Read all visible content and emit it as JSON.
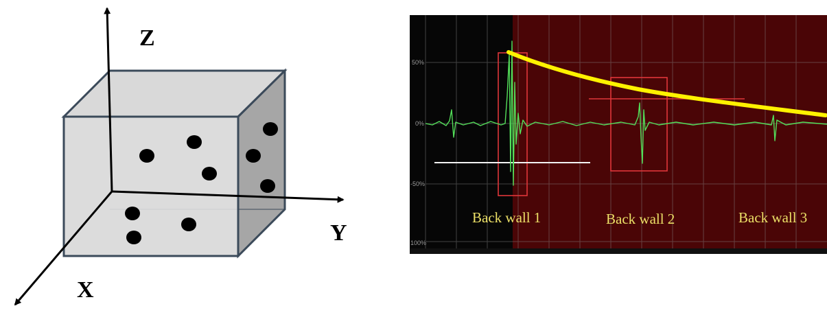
{
  "axes": {
    "x_label": "X",
    "y_label": "Y",
    "z_label": "Z"
  },
  "scope": {
    "y_ticks": [
      "50%",
      "0%",
      "-50%",
      "100%"
    ],
    "wall_labels": [
      "Back wall 1",
      "Back wall 2",
      "Back wall 3"
    ]
  },
  "colors": {
    "cube_front": "#d9d9d9",
    "cube_right": "#a6a6a6",
    "cube_edge": "#3b4a5a",
    "screen_left": "#060606",
    "screen_right": "#4a0506",
    "signal": "#54e05a",
    "envelope": "#fff200",
    "gate": "#e0363a",
    "wall_label": "#ece067"
  }
}
